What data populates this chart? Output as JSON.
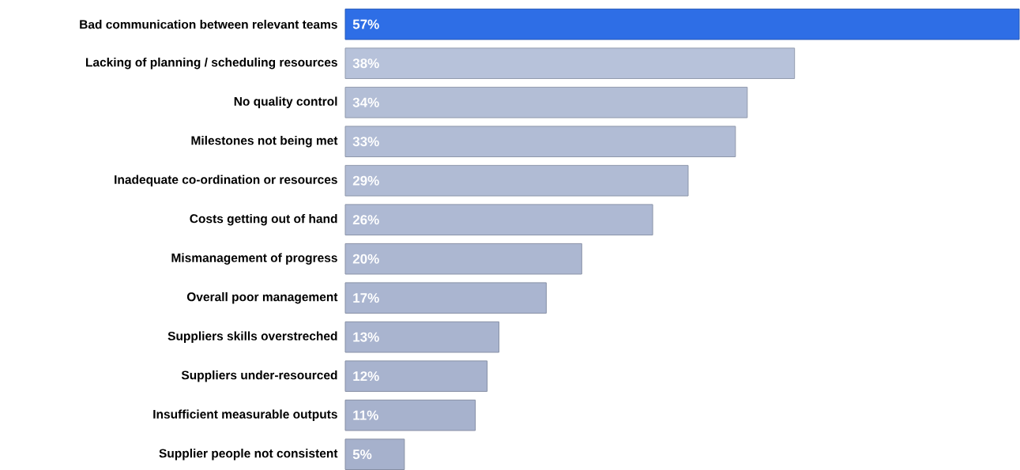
{
  "chart_data": {
    "type": "bar",
    "orientation": "horizontal",
    "categories": [
      "Bad communication between relevant teams",
      "Lacking of planning / scheduling resources",
      "No quality control",
      "Milestones not being met",
      "Inadequate co-ordination or resources",
      "Costs getting out of hand",
      "Mismanagement of progress",
      "Overall poor management",
      "Suppliers skills overstreched",
      "Suppliers under-resourced",
      "Insufficient measurable outputs",
      "Supplier people not consistent"
    ],
    "values": [
      57,
      38,
      34,
      33,
      29,
      26,
      20,
      17,
      13,
      12,
      11,
      5
    ],
    "value_labels": [
      "57%",
      "38%",
      "34%",
      "33%",
      "29%",
      "26%",
      "20%",
      "17%",
      "13%",
      "12%",
      "11%",
      "5%"
    ],
    "colors": [
      "#2e6ee6",
      "#b7c2da",
      "#b3bed6",
      "#b1bcd5",
      "#b0bbd4",
      "#aeb9d3",
      "#acb7d1",
      "#aab5d0",
      "#a9b4cf",
      "#a8b3ce",
      "#a7b2cd",
      "#a6b1cc"
    ],
    "xlim": [
      0,
      57
    ],
    "tick_labels": "y"
  }
}
